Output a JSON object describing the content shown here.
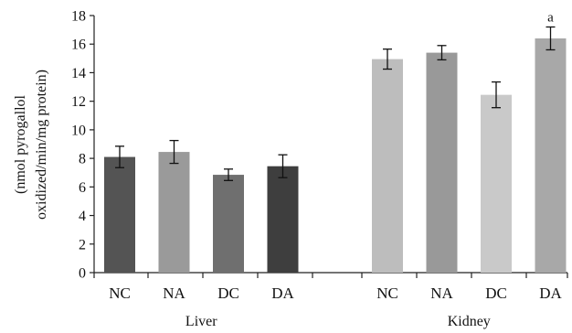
{
  "chart_data": {
    "type": "bar",
    "ylim": [
      0,
      18
    ],
    "yticks": [
      0,
      2,
      4,
      6,
      8,
      10,
      12,
      14,
      16,
      18
    ],
    "ylabel_lines": [
      "(nmol pyrogallol",
      "oxidized/min/mg protein)"
    ],
    "groups": [
      {
        "label": "Liver",
        "bars": [
          {
            "category": "NC",
            "value": 8.1,
            "error": 0.75,
            "color": "#545454"
          },
          {
            "category": "NA",
            "value": 8.45,
            "error": 0.8,
            "color": "#9a9a9a"
          },
          {
            "category": "DC",
            "value": 6.85,
            "error": 0.4,
            "color": "#6f6f6f"
          },
          {
            "category": "DA",
            "value": 7.45,
            "error": 0.8,
            "color": "#3e3e3e"
          }
        ]
      },
      {
        "label": "Kidney",
        "bars": [
          {
            "category": "NC",
            "value": 14.95,
            "error": 0.7,
            "color": "#bdbdbd"
          },
          {
            "category": "NA",
            "value": 15.4,
            "error": 0.5,
            "color": "#999999"
          },
          {
            "category": "DC",
            "value": 12.45,
            "error": 0.9,
            "color": "#c9c9c9"
          },
          {
            "category": "DA",
            "value": 16.4,
            "error": 0.8,
            "color": "#a8a8a8",
            "annotation": "a"
          }
        ]
      }
    ]
  }
}
